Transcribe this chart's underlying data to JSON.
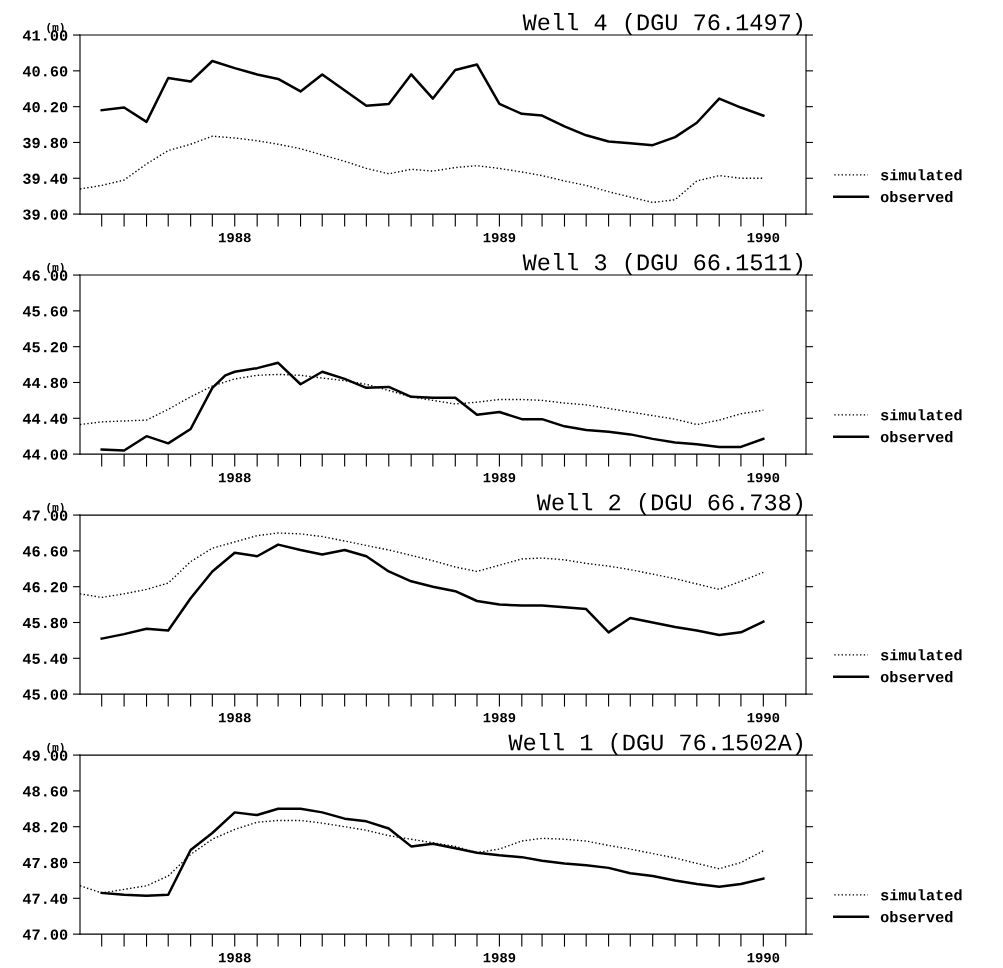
{
  "chart_data": [
    {
      "type": "line",
      "title": "Well 4 (DGU 76.1497)",
      "ylabel": "(m)",
      "xlim": [
        "1987-06",
        "1990-03"
      ],
      "ylim": [
        39,
        41
      ],
      "yticks": [
        {
          "value": 39,
          "label": "39.00"
        },
        {
          "value": 39.4,
          "label": "39.40"
        },
        {
          "value": 39.8,
          "label": "39.80"
        },
        {
          "value": 40.2,
          "label": "40.20"
        },
        {
          "value": 40.6,
          "label": "40.60"
        },
        {
          "value": 41,
          "label": "41.00"
        }
      ],
      "xticks": [
        {
          "value": "1987-07",
          "label": null
        },
        {
          "value": "1987-08",
          "label": null
        },
        {
          "value": "1987-09",
          "label": null
        },
        {
          "value": "1987-10",
          "label": null
        },
        {
          "value": "1987-11",
          "label": null
        },
        {
          "value": "1987-12",
          "label": null
        },
        {
          "value": "1988-01",
          "label": "1988"
        },
        {
          "value": "1988-02",
          "label": null
        },
        {
          "value": "1988-03",
          "label": null
        },
        {
          "value": "1988-04",
          "label": null
        },
        {
          "value": "1988-05",
          "label": null
        },
        {
          "value": "1988-06",
          "label": null
        },
        {
          "value": "1988-07",
          "label": null
        },
        {
          "value": "1988-08",
          "label": null
        },
        {
          "value": "1988-09",
          "label": null
        },
        {
          "value": "1988-10",
          "label": null
        },
        {
          "value": "1988-11",
          "label": null
        },
        {
          "value": "1988-12",
          "label": null
        },
        {
          "value": "1989-01",
          "label": "1989"
        },
        {
          "value": "1989-02",
          "label": null
        },
        {
          "value": "1989-03",
          "label": null
        },
        {
          "value": "1989-04",
          "label": null
        },
        {
          "value": "1989-05",
          "label": null
        },
        {
          "value": "1989-06",
          "label": null
        },
        {
          "value": "1989-07",
          "label": null
        },
        {
          "value": "1989-08",
          "label": null
        },
        {
          "value": "1989-09",
          "label": null
        },
        {
          "value": "1989-10",
          "label": null
        },
        {
          "value": "1989-11",
          "label": null
        },
        {
          "value": "1989-12",
          "label": null
        },
        {
          "value": "1990-01",
          "label": "1990"
        },
        {
          "value": "1990-02",
          "label": null
        }
      ],
      "grid": false,
      "legend": "right",
      "marker": "none",
      "series": [
        {
          "name": "simulated",
          "color": "#000000",
          "line_style": "dotted",
          "x": [
            "1987-06",
            "1987-07",
            "1987-08",
            "1987-09",
            "1987-10",
            "1987-11",
            "1987-12",
            "1988-01",
            "1988-02",
            "1988-03",
            "1988-04",
            "1988-05",
            "1988-06",
            "1988-07",
            "1988-08",
            "1988-09",
            "1988-10",
            "1988-11",
            "1988-12",
            "1989-01",
            "1989-02",
            "1989-03",
            "1989-04",
            "1989-05",
            "1989-06",
            "1989-07",
            "1989-08",
            "1989-09",
            "1989-10",
            "1989-11",
            "1989-12",
            "1990-01"
          ],
          "values": [
            39.28,
            39.32,
            39.38,
            39.56,
            39.71,
            39.78,
            39.87,
            39.85,
            39.82,
            39.78,
            39.73,
            39.66,
            39.59,
            39.51,
            39.45,
            39.5,
            39.48,
            39.52,
            39.54,
            39.51,
            39.47,
            39.43,
            39.37,
            39.32,
            39.25,
            39.19,
            39.13,
            39.16,
            39.37,
            39.43,
            39.4,
            39.4
          ]
        },
        {
          "name": "observed",
          "color": "#000000",
          "line_style": "solid",
          "x": [
            "1987-07",
            "1987-08",
            "1987-09",
            "1987-10",
            "1987-11",
            "1987-12",
            "1988-01",
            "1988-02",
            "1988-03",
            "1988-04",
            "1988-05",
            "1988-07",
            "1988-08",
            "1988-09",
            "1988-10",
            "1988-11",
            "1988-12",
            "1989-01",
            "1989-02",
            "1989-03",
            "1989-04",
            "1989-05",
            "1989-06",
            "1989-07",
            "1989-08",
            "1989-09",
            "1989-10",
            "1989-11",
            "1989-12",
            "1990-01"
          ],
          "values": [
            40.16,
            40.19,
            40.03,
            40.52,
            40.48,
            40.71,
            40.63,
            40.56,
            40.51,
            40.37,
            40.56,
            40.21,
            40.23,
            40.56,
            40.29,
            40.61,
            40.67,
            40.23,
            40.12,
            40.1,
            39.98,
            39.88,
            39.81,
            39.79,
            39.77,
            39.86,
            40.02,
            40.29,
            40.19,
            40.1
          ]
        }
      ]
    },
    {
      "type": "line",
      "title": "Well 3 (DGU 66.1511)",
      "ylabel": "(m)",
      "xlim": [
        "1987-06",
        "1990-03"
      ],
      "ylim": [
        44,
        46
      ],
      "yticks": [
        {
          "value": 44,
          "label": "44.00"
        },
        {
          "value": 44.4,
          "label": "44.40"
        },
        {
          "value": 44.8,
          "label": "44.80"
        },
        {
          "value": 45.2,
          "label": "45.20"
        },
        {
          "value": 45.6,
          "label": "45.60"
        },
        {
          "value": 46,
          "label": "46.00"
        }
      ],
      "xticks": [
        {
          "value": "1987-07",
          "label": null
        },
        {
          "value": "1987-08",
          "label": null
        },
        {
          "value": "1987-09",
          "label": null
        },
        {
          "value": "1987-10",
          "label": null
        },
        {
          "value": "1987-11",
          "label": null
        },
        {
          "value": "1987-12",
          "label": null
        },
        {
          "value": "1988-01",
          "label": "1988"
        },
        {
          "value": "1988-02",
          "label": null
        },
        {
          "value": "1988-03",
          "label": null
        },
        {
          "value": "1988-04",
          "label": null
        },
        {
          "value": "1988-05",
          "label": null
        },
        {
          "value": "1988-06",
          "label": null
        },
        {
          "value": "1988-07",
          "label": null
        },
        {
          "value": "1988-08",
          "label": null
        },
        {
          "value": "1988-09",
          "label": null
        },
        {
          "value": "1988-10",
          "label": null
        },
        {
          "value": "1988-11",
          "label": null
        },
        {
          "value": "1988-12",
          "label": null
        },
        {
          "value": "1989-01",
          "label": "1989"
        },
        {
          "value": "1989-02",
          "label": null
        },
        {
          "value": "1989-03",
          "label": null
        },
        {
          "value": "1989-04",
          "label": null
        },
        {
          "value": "1989-05",
          "label": null
        },
        {
          "value": "1989-06",
          "label": null
        },
        {
          "value": "1989-07",
          "label": null
        },
        {
          "value": "1989-08",
          "label": null
        },
        {
          "value": "1989-09",
          "label": null
        },
        {
          "value": "1989-10",
          "label": null
        },
        {
          "value": "1989-11",
          "label": null
        },
        {
          "value": "1989-12",
          "label": null
        },
        {
          "value": "1990-01",
          "label": "1990"
        },
        {
          "value": "1990-02",
          "label": null
        }
      ],
      "grid": false,
      "legend": "right",
      "marker": "none",
      "series": [
        {
          "name": "simulated",
          "color": "#000000",
          "line_style": "dotted",
          "x": [
            "1987-06",
            "1987-07",
            "1987-08",
            "1987-09",
            "1987-10",
            "1987-11",
            "1987-12",
            "1988-01",
            "1988-02",
            "1988-03",
            "1988-04",
            "1988-05",
            "1988-06",
            "1988-07",
            "1988-08",
            "1988-09",
            "1988-10",
            "1988-11",
            "1988-12",
            "1989-01",
            "1989-02",
            "1989-03",
            "1989-04",
            "1989-05",
            "1989-06",
            "1989-07",
            "1989-08",
            "1989-09",
            "1989-10",
            "1989-11",
            "1989-12",
            "1990-01"
          ],
          "values": [
            44.33,
            44.36,
            44.37,
            44.38,
            44.5,
            44.64,
            44.76,
            44.84,
            44.88,
            44.89,
            44.88,
            44.85,
            44.82,
            44.78,
            44.71,
            44.64,
            44.6,
            44.56,
            44.58,
            44.61,
            44.61,
            44.6,
            44.57,
            44.55,
            44.51,
            44.47,
            44.43,
            44.39,
            44.33,
            44.38,
            44.45,
            44.49
          ]
        },
        {
          "name": "observed",
          "color": "#000000",
          "line_style": "solid",
          "x": [
            "1987-07",
            "1987-08",
            "1987-09",
            "1987-10",
            "1987-11",
            "1987-12",
            "1987-12-19",
            "1988-01",
            "1988-02",
            "1988-03",
            "1988-04",
            "1988-05",
            "1988-06",
            "1988-07",
            "1988-08",
            "1988-09",
            "1988-10",
            "1988-11",
            "1988-12",
            "1989-01",
            "1989-02",
            "1989-03",
            "1989-04",
            "1989-05",
            "1989-06",
            "1989-07",
            "1989-08",
            "1989-09",
            "1989-10",
            "1989-11",
            "1989-12",
            "1990-01"
          ],
          "values": [
            44.05,
            44.04,
            44.2,
            44.12,
            44.28,
            44.74,
            44.88,
            44.92,
            44.96,
            45.02,
            44.78,
            44.92,
            44.84,
            44.74,
            44.75,
            44.64,
            44.63,
            44.63,
            44.44,
            44.47,
            44.39,
            44.39,
            44.31,
            44.27,
            44.25,
            44.22,
            44.17,
            44.13,
            44.11,
            44.08,
            44.08,
            44.17
          ]
        }
      ]
    },
    {
      "type": "line",
      "title": "Well 2 (DGU 66.738)",
      "ylabel": "(m)",
      "xlim": [
        "1987-06",
        "1990-03"
      ],
      "ylim": [
        45,
        47
      ],
      "yticks": [
        {
          "value": 45,
          "label": "45.00"
        },
        {
          "value": 45.4,
          "label": "45.40"
        },
        {
          "value": 45.8,
          "label": "45.80"
        },
        {
          "value": 46.2,
          "label": "46.20"
        },
        {
          "value": 46.6,
          "label": "46.60"
        },
        {
          "value": 47,
          "label": "47.00"
        }
      ],
      "xticks": [
        {
          "value": "1987-07",
          "label": null
        },
        {
          "value": "1987-08",
          "label": null
        },
        {
          "value": "1987-09",
          "label": null
        },
        {
          "value": "1987-10",
          "label": null
        },
        {
          "value": "1987-11",
          "label": null
        },
        {
          "value": "1987-12",
          "label": null
        },
        {
          "value": "1988-01",
          "label": "1988"
        },
        {
          "value": "1988-02",
          "label": null
        },
        {
          "value": "1988-03",
          "label": null
        },
        {
          "value": "1988-04",
          "label": null
        },
        {
          "value": "1988-05",
          "label": null
        },
        {
          "value": "1988-06",
          "label": null
        },
        {
          "value": "1988-07",
          "label": null
        },
        {
          "value": "1988-08",
          "label": null
        },
        {
          "value": "1988-09",
          "label": null
        },
        {
          "value": "1988-10",
          "label": null
        },
        {
          "value": "1988-11",
          "label": null
        },
        {
          "value": "1988-12",
          "label": null
        },
        {
          "value": "1989-01",
          "label": "1989"
        },
        {
          "value": "1989-02",
          "label": null
        },
        {
          "value": "1989-03",
          "label": null
        },
        {
          "value": "1989-04",
          "label": null
        },
        {
          "value": "1989-05",
          "label": null
        },
        {
          "value": "1989-06",
          "label": null
        },
        {
          "value": "1989-07",
          "label": null
        },
        {
          "value": "1989-08",
          "label": null
        },
        {
          "value": "1989-09",
          "label": null
        },
        {
          "value": "1989-10",
          "label": null
        },
        {
          "value": "1989-11",
          "label": null
        },
        {
          "value": "1989-12",
          "label": null
        },
        {
          "value": "1990-01",
          "label": "1990"
        },
        {
          "value": "1990-02",
          "label": null
        }
      ],
      "grid": false,
      "legend": "right",
      "marker": "none",
      "series": [
        {
          "name": "simulated",
          "color": "#000000",
          "line_style": "dotted",
          "x": [
            "1987-06",
            "1987-07",
            "1987-08",
            "1987-09",
            "1987-10",
            "1987-11",
            "1987-12",
            "1988-01",
            "1988-02",
            "1988-03",
            "1988-04",
            "1988-05",
            "1988-06",
            "1988-07",
            "1988-08",
            "1988-09",
            "1988-10",
            "1988-11",
            "1988-12",
            "1989-01",
            "1989-02",
            "1989-03",
            "1989-04",
            "1989-05",
            "1989-06",
            "1989-07",
            "1989-08",
            "1989-09",
            "1989-10",
            "1989-11",
            "1989-12",
            "1990-01"
          ],
          "values": [
            46.12,
            46.08,
            46.12,
            46.17,
            46.24,
            46.48,
            46.63,
            46.7,
            46.77,
            46.8,
            46.79,
            46.76,
            46.71,
            46.66,
            46.61,
            46.55,
            46.49,
            46.42,
            46.37,
            46.44,
            46.51,
            46.52,
            46.5,
            46.46,
            46.43,
            46.39,
            46.34,
            46.29,
            46.23,
            46.17,
            46.26,
            46.36
          ]
        },
        {
          "name": "observed",
          "color": "#000000",
          "line_style": "solid",
          "x": [
            "1987-07",
            "1987-08",
            "1987-09",
            "1987-10",
            "1987-11",
            "1987-12",
            "1988-01",
            "1988-02",
            "1988-03",
            "1988-04",
            "1988-05",
            "1988-06",
            "1988-07",
            "1988-08",
            "1988-09",
            "1988-10",
            "1988-11",
            "1988-12",
            "1989-01",
            "1989-02",
            "1989-03",
            "1989-04",
            "1989-05",
            "1989-06",
            "1989-07",
            "1989-08",
            "1989-09",
            "1989-10",
            "1989-11",
            "1989-12",
            "1990-01"
          ],
          "values": [
            45.62,
            45.67,
            45.73,
            45.71,
            46.07,
            46.37,
            46.58,
            46.54,
            46.67,
            46.61,
            46.56,
            46.61,
            46.54,
            46.37,
            46.26,
            46.2,
            46.15,
            46.04,
            46.0,
            45.99,
            45.99,
            45.97,
            45.95,
            45.69,
            45.85,
            45.8,
            45.75,
            45.71,
            45.66,
            45.69,
            45.81
          ]
        }
      ]
    },
    {
      "type": "line",
      "title": "Well 1 (DGU 76.1502A)",
      "ylabel": "(m)",
      "xlim": [
        "1987-06",
        "1990-03"
      ],
      "ylim": [
        47,
        49
      ],
      "yticks": [
        {
          "value": 47,
          "label": "47.00"
        },
        {
          "value": 47.4,
          "label": "47.40"
        },
        {
          "value": 47.8,
          "label": "47.80"
        },
        {
          "value": 48.2,
          "label": "48.20"
        },
        {
          "value": 48.6,
          "label": "48.60"
        },
        {
          "value": 49,
          "label": "49.00"
        }
      ],
      "xticks": [
        {
          "value": "1987-07",
          "label": null
        },
        {
          "value": "1987-08",
          "label": null
        },
        {
          "value": "1987-09",
          "label": null
        },
        {
          "value": "1987-10",
          "label": null
        },
        {
          "value": "1987-11",
          "label": null
        },
        {
          "value": "1987-12",
          "label": null
        },
        {
          "value": "1988-01",
          "label": "1988"
        },
        {
          "value": "1988-02",
          "label": null
        },
        {
          "value": "1988-03",
          "label": null
        },
        {
          "value": "1988-04",
          "label": null
        },
        {
          "value": "1988-05",
          "label": null
        },
        {
          "value": "1988-06",
          "label": null
        },
        {
          "value": "1988-07",
          "label": null
        },
        {
          "value": "1988-08",
          "label": null
        },
        {
          "value": "1988-09",
          "label": null
        },
        {
          "value": "1988-10",
          "label": null
        },
        {
          "value": "1988-11",
          "label": null
        },
        {
          "value": "1988-12",
          "label": null
        },
        {
          "value": "1989-01",
          "label": "1989"
        },
        {
          "value": "1989-02",
          "label": null
        },
        {
          "value": "1989-03",
          "label": null
        },
        {
          "value": "1989-04",
          "label": null
        },
        {
          "value": "1989-05",
          "label": null
        },
        {
          "value": "1989-06",
          "label": null
        },
        {
          "value": "1989-07",
          "label": null
        },
        {
          "value": "1989-08",
          "label": null
        },
        {
          "value": "1989-09",
          "label": null
        },
        {
          "value": "1989-10",
          "label": null
        },
        {
          "value": "1989-11",
          "label": null
        },
        {
          "value": "1989-12",
          "label": null
        },
        {
          "value": "1990-01",
          "label": "1990"
        },
        {
          "value": "1990-02",
          "label": null
        }
      ],
      "grid": false,
      "legend": "right",
      "marker": "none",
      "series": [
        {
          "name": "simulated",
          "color": "#000000",
          "line_style": "dotted",
          "x": [
            "1987-06",
            "1987-07",
            "1987-08",
            "1987-09",
            "1987-10",
            "1987-11",
            "1987-12",
            "1988-01",
            "1988-02",
            "1988-03",
            "1988-04",
            "1988-05",
            "1988-06",
            "1988-07",
            "1988-08",
            "1988-09",
            "1988-10",
            "1988-11",
            "1988-12",
            "1989-01",
            "1989-02",
            "1989-03",
            "1989-04",
            "1989-05",
            "1989-06",
            "1989-07",
            "1989-08",
            "1989-09",
            "1989-10",
            "1989-11",
            "1989-12",
            "1990-01"
          ],
          "values": [
            47.54,
            47.46,
            47.5,
            47.54,
            47.65,
            47.89,
            48.06,
            48.17,
            48.25,
            48.27,
            48.27,
            48.24,
            48.2,
            48.16,
            48.1,
            48.06,
            48.02,
            47.98,
            47.91,
            47.95,
            48.04,
            48.07,
            48.06,
            48.04,
            47.99,
            47.95,
            47.9,
            47.85,
            47.79,
            47.73,
            47.8,
            47.93
          ]
        },
        {
          "name": "observed",
          "color": "#000000",
          "line_style": "solid",
          "x": [
            "1987-07",
            "1987-08",
            "1987-09",
            "1987-10",
            "1987-11",
            "1987-12",
            "1988-01",
            "1988-02",
            "1988-03",
            "1988-04",
            "1988-05",
            "1988-06",
            "1988-07",
            "1988-08",
            "1988-09",
            "1988-10",
            "1988-11",
            "1988-12",
            "1989-01",
            "1989-02",
            "1989-03",
            "1989-04",
            "1989-05",
            "1989-06",
            "1989-07",
            "1989-08",
            "1989-09",
            "1989-10",
            "1989-11",
            "1989-12",
            "1990-01"
          ],
          "values": [
            47.46,
            47.44,
            47.43,
            47.44,
            47.94,
            48.13,
            48.36,
            48.33,
            48.4,
            48.4,
            48.36,
            48.29,
            48.26,
            48.18,
            47.98,
            48.01,
            47.96,
            47.91,
            47.88,
            47.86,
            47.82,
            47.79,
            47.77,
            47.74,
            47.68,
            47.65,
            47.6,
            47.56,
            47.53,
            47.56,
            47.62
          ]
        }
      ]
    }
  ]
}
